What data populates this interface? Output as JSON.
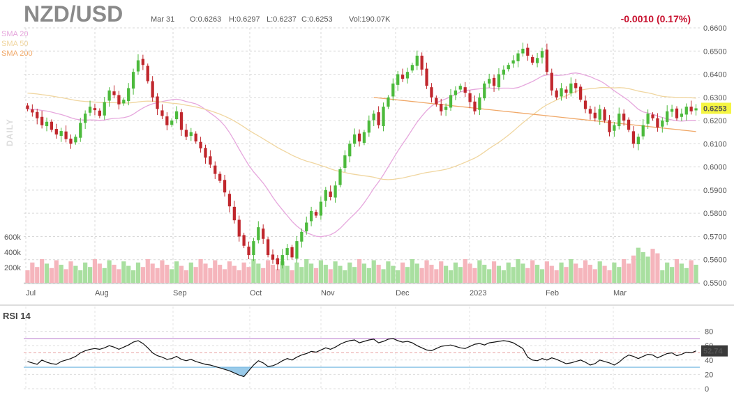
{
  "header": {
    "symbol": "NZD/USD",
    "date": "Mar 31",
    "open": "O:0.6263",
    "high": "H:0.6297",
    "low": "L:0.6237",
    "close": "C:0.6253",
    "volume": "Vol:190.07K",
    "change": "-0.0010 (0.17%)"
  },
  "legend": {
    "sma20": "SMA 20",
    "sma50": "SMA 50",
    "sma200": "SMA 200",
    "interval": "DAILY"
  },
  "colors": {
    "up": "#4cba3c",
    "down": "#c0272d",
    "vol_up": "#a9dfa0",
    "vol_down": "#f5b5bc",
    "sma20": "#e6a7dd",
    "sma50": "#f0d6a0",
    "sma200": "#f0a868",
    "rsi_line": "#111111",
    "rsi_upper": "#c89ad8",
    "rsi_lower": "#7fbde4",
    "price_tag": "#f5f542"
  },
  "chart_data": [
    {
      "type": "candlestick",
      "title": "NZD/USD",
      "y_ticks": [
        "0.6600",
        "0.6500",
        "0.6400",
        "0.6300",
        "0.6200",
        "0.6100",
        "0.6000",
        "0.5900",
        "0.5800",
        "0.5700",
        "0.5600",
        "0.5500"
      ],
      "ylim": [
        0.55,
        0.66
      ],
      "x_ticks": [
        "Jul",
        "Aug",
        "Sep",
        "Oct",
        "Nov",
        "Dec",
        "2023",
        "Feb",
        "Mar"
      ],
      "last_price": "0.6253",
      "volume_ticks": [
        "600k",
        "400k",
        "200k"
      ],
      "close_series": [
        0.625,
        0.6235,
        0.621,
        0.618,
        0.6195,
        0.616,
        0.614,
        0.6155,
        0.612,
        0.61,
        0.613,
        0.619,
        0.623,
        0.626,
        0.6245,
        0.622,
        0.628,
        0.633,
        0.631,
        0.627,
        0.629,
        0.634,
        0.641,
        0.646,
        0.644,
        0.637,
        0.63,
        0.625,
        0.622,
        0.618,
        0.62,
        0.624,
        0.616,
        0.613,
        0.615,
        0.611,
        0.608,
        0.604,
        0.601,
        0.597,
        0.594,
        0.589,
        0.583,
        0.577,
        0.57,
        0.566,
        0.562,
        0.568,
        0.574,
        0.569,
        0.562,
        0.56,
        0.558,
        0.562,
        0.565,
        0.561,
        0.568,
        0.572,
        0.576,
        0.581,
        0.579,
        0.585,
        0.59,
        0.587,
        0.592,
        0.599,
        0.605,
        0.61,
        0.614,
        0.611,
        0.615,
        0.62,
        0.623,
        0.618,
        0.626,
        0.63,
        0.636,
        0.64,
        0.638,
        0.641,
        0.644,
        0.648,
        0.642,
        0.635,
        0.63,
        0.627,
        0.624,
        0.626,
        0.631,
        0.633,
        0.635,
        0.632,
        0.628,
        0.624,
        0.63,
        0.636,
        0.638,
        0.635,
        0.64,
        0.642,
        0.644,
        0.646,
        0.649,
        0.651,
        0.648,
        0.645,
        0.647,
        0.65,
        0.641,
        0.633,
        0.63,
        0.634,
        0.632,
        0.636,
        0.634,
        0.629,
        0.625,
        0.623,
        0.621,
        0.625,
        0.62,
        0.615,
        0.618,
        0.623,
        0.62,
        0.616,
        0.61,
        0.613,
        0.618,
        0.623,
        0.621,
        0.617,
        0.62,
        0.624,
        0.625,
        0.621,
        0.623,
        0.626,
        0.624,
        0.6253
      ],
      "rsi": {
        "label": "RSI 14",
        "ticks": [
          "80",
          "60",
          "40",
          "20",
          "0"
        ],
        "ylim": [
          0,
          100
        ],
        "upper": 70,
        "lower": 30,
        "last_value": "52.74",
        "values": [
          38,
          36,
          34,
          40,
          37,
          35,
          34,
          38,
          40,
          42,
          45,
          50,
          53,
          55,
          56,
          55,
          57,
          60,
          58,
          55,
          58,
          61,
          65,
          67,
          63,
          57,
          50,
          46,
          44,
          41,
          42,
          45,
          41,
          39,
          41,
          38,
          36,
          34,
          33,
          31,
          29,
          27,
          25,
          22,
          19,
          17,
          25,
          33,
          39,
          36,
          31,
          32,
          35,
          39,
          42,
          40,
          44,
          47,
          49,
          52,
          51,
          54,
          57,
          55,
          58,
          62,
          65,
          67,
          68,
          64,
          66,
          68,
          69,
          64,
          66,
          69,
          70,
          67,
          65,
          66,
          64,
          60,
          57,
          54,
          53,
          56,
          59,
          60,
          61,
          59,
          57,
          56,
          59,
          62,
          63,
          61,
          64,
          65,
          66,
          67,
          66,
          64,
          60,
          56,
          44,
          40,
          39,
          42,
          40,
          43,
          41,
          38,
          35,
          36,
          38,
          40,
          37,
          33,
          35,
          40,
          38,
          36,
          33,
          37,
          43,
          47,
          45,
          42,
          45,
          48,
          47,
          43,
          46,
          49,
          50,
          46,
          48,
          51,
          50,
          52.74
        ],
        "histogram_below_30": true
      }
    }
  ]
}
